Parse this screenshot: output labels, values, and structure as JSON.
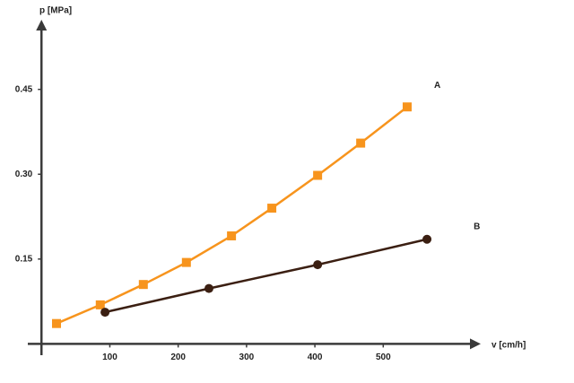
{
  "chart_data": {
    "type": "line",
    "y_label": "p [MPa]",
    "x_label": "v [cm/h]",
    "xlim": [
      -20,
      640
    ],
    "ylim": [
      -0.02,
      0.57
    ],
    "xticks": [
      100,
      200,
      300,
      400,
      500
    ],
    "yticks": [
      0.15,
      {
        "value": 0.3,
        "label": "0.30"
      },
      0.45
    ],
    "series": [
      {
        "name": "A",
        "color": "#f7941d",
        "marker": "square",
        "x": [
          22,
          86,
          149,
          212,
          278,
          337,
          404,
          467,
          535
        ],
        "values": [
          0.036,
          0.069,
          0.105,
          0.144,
          0.191,
          0.24,
          0.298,
          0.355,
          0.419
        ]
      },
      {
        "name": "B",
        "color": "#3b1f12",
        "marker": "circle",
        "x": [
          93,
          245,
          404,
          564
        ],
        "values": [
          0.056,
          0.098,
          0.14,
          0.185
        ]
      }
    ]
  }
}
